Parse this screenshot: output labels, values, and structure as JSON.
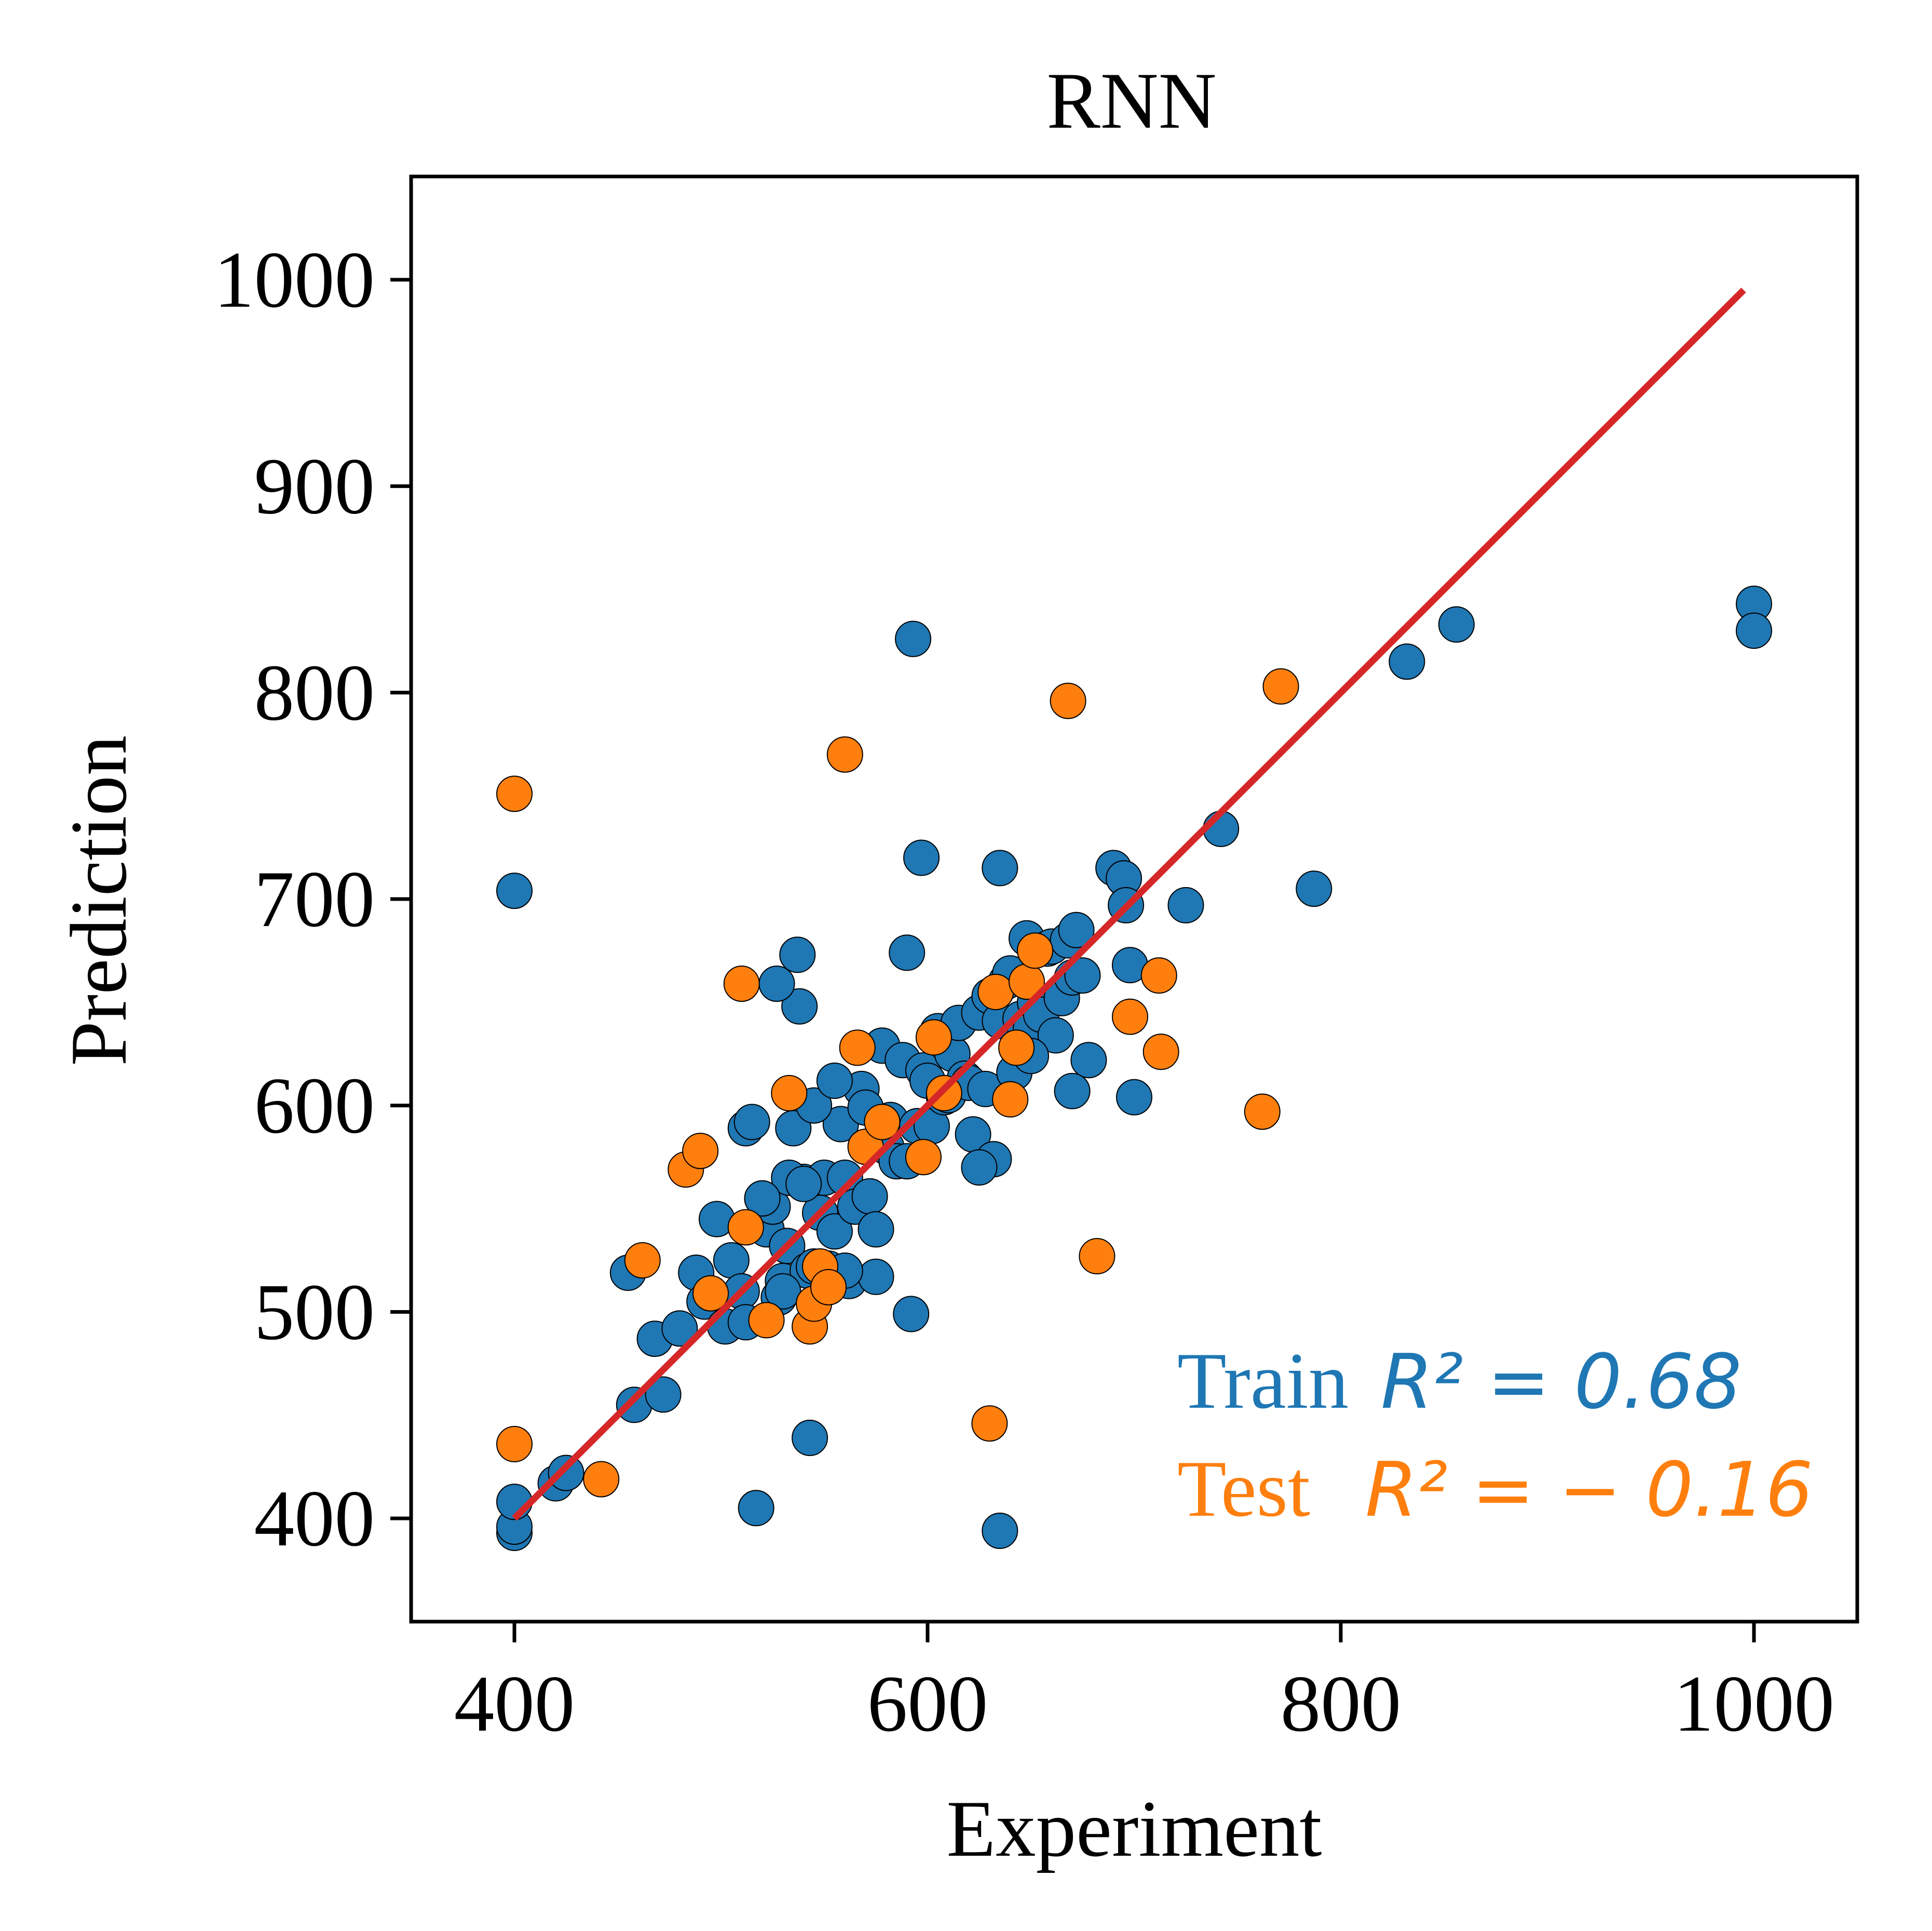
{
  "chart_data": {
    "type": "scatter",
    "title": "RNN",
    "xlabel": "Experiment",
    "ylabel": "Prediction",
    "xlim": [
      350,
      1050
    ],
    "ylim": [
      350,
      1050
    ],
    "xticks": [
      400,
      600,
      800,
      1000
    ],
    "yticks": [
      400,
      500,
      600,
      700,
      800,
      900,
      1000
    ],
    "grid": false,
    "colors": {
      "train": "#1f77b4",
      "test": "#ff7f0e",
      "fit_line": "#d62728",
      "axes": "#000000"
    },
    "fit_line": {
      "x": [
        400,
        995
      ],
      "y": [
        400,
        995
      ]
    },
    "annotations": {
      "train_label": "Train",
      "train_stat": "R² = 0.68",
      "test_label": "Test",
      "test_stat": "R² = − 0.16"
    },
    "series": [
      {
        "key": "train",
        "x": [
          400,
          400,
          400,
          400,
          420,
          425,
          458,
          472,
          468,
          480,
          455,
          488,
          492,
          498,
          502,
          505,
          510,
          512,
          515,
          520,
          522,
          525,
          528,
          530,
          532,
          535,
          538,
          540,
          542,
          545,
          548,
          550,
          552,
          555,
          558,
          560,
          562,
          565,
          568,
          570,
          572,
          575,
          578,
          580,
          582,
          585,
          588,
          590,
          592,
          595,
          598,
          600,
          602,
          605,
          608,
          610,
          612,
          615,
          618,
          620,
          622,
          625,
          628,
          630,
          632,
          635,
          638,
          640,
          642,
          645,
          648,
          650,
          652,
          655,
          658,
          660,
          662,
          665,
          668,
          670,
          672,
          675,
          678,
          690,
          695,
          696,
          698,
          700,
          725,
          742,
          787,
          832,
          856,
          1000,
          1000,
          593,
          597,
          635,
          537,
          527,
          533,
          512,
          517,
          543,
          635,
          590,
          625,
          650,
          670,
          560,
          540,
          545,
          555,
          575,
          530,
          520
        ],
        "y": [
          393,
          396,
          408,
          704,
          417,
          422,
          455,
          460,
          487,
          492,
          519,
          519,
          505,
          545,
          493,
          525,
          510,
          589,
          592,
          555,
          540,
          551,
          507,
          515,
          532,
          589,
          648,
          563,
          520,
          522,
          548,
          565,
          521,
          539,
          591,
          565,
          515,
          551,
          608,
          599,
          556,
          517,
          629,
          580,
          593,
          573,
          622,
          573,
          499,
          590,
          617,
          612,
          590,
          636,
          604,
          605,
          625,
          640,
          613,
          611,
          586,
          645,
          608,
          653,
          574,
          641,
          660,
          664,
          616,
          642,
          681,
          637,
          650,
          644,
          676,
          677,
          634,
          652,
          680,
          662,
          685,
          663,
          622,
          715,
          710,
          697,
          668,
          604,
          697,
          734,
          705,
          815,
          833,
          843,
          830,
          826,
          720,
          715,
          673,
          659,
          565,
          495,
          405,
          439,
          394,
          674,
          570,
          624,
          607,
          520,
          562,
          600,
          612,
          540,
          510,
          555
        ]
      },
      {
        "key": "test",
        "x": [
          400,
          400,
          442,
          462,
          483,
          490,
          495,
          510,
          512,
          522,
          533,
          543,
          545,
          548,
          552,
          560,
          566,
          570,
          578,
          598,
          603,
          608,
          630,
          633,
          640,
          643,
          648,
          652,
          668,
          682,
          698,
          712,
          713,
          762,
          771
        ],
        "y": [
          436,
          751,
          419,
          525,
          569,
          578,
          509,
          659,
          541,
          496,
          606,
          493,
          504,
          522,
          512,
          770,
          628,
          580,
          592,
          575,
          633,
          606,
          446,
          655,
          603,
          628,
          660,
          675,
          796,
          527,
          643,
          663,
          626,
          597,
          803
        ]
      }
    ]
  }
}
